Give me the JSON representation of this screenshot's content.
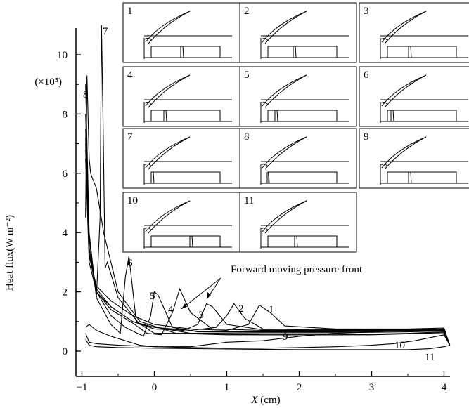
{
  "chart_data": {
    "type": "line",
    "ylabel": "Heat flux(W m⁻²)",
    "xlabel_italic": "X",
    "xlabel_rest": " (cm)",
    "y_multiplier": "(×10⁵)",
    "xlim": [
      -1.0,
      4.1
    ],
    "ylim": [
      -0.25,
      11.0
    ],
    "xticks": [
      {
        "v": -1,
        "label": "−1"
      },
      {
        "v": 0,
        "label": "0"
      },
      {
        "v": 1,
        "label": "1"
      },
      {
        "v": 2,
        "label": "2"
      },
      {
        "v": 3,
        "label": "3"
      },
      {
        "v": 4,
        "label": "4"
      }
    ],
    "yticks": [
      {
        "v": 0,
        "label": "0"
      },
      {
        "v": 2,
        "label": "2"
      },
      {
        "v": 4,
        "label": "4"
      },
      {
        "v": 6,
        "label": "6"
      },
      {
        "v": 8,
        "label": "8"
      },
      {
        "v": 10,
        "label": "10"
      }
    ],
    "annotation": "Forward moving pressure front",
    "series": [
      {
        "name": "1",
        "x": [
          -0.95,
          -0.9,
          -0.8,
          -0.6,
          -0.3,
          0,
          0.5,
          1.0,
          1.3,
          1.45,
          1.6,
          1.8,
          2.5,
          3.5,
          4.0,
          4.08
        ],
        "y": [
          6.8,
          3.2,
          2.2,
          1.7,
          1.2,
          0.9,
          0.75,
          0.7,
          0.9,
          1.55,
          1.3,
          0.85,
          0.75,
          0.75,
          0.78,
          0.2
        ]
      },
      {
        "name": "2",
        "x": [
          -0.95,
          -0.9,
          -0.8,
          -0.6,
          -0.3,
          0,
          0.5,
          0.85,
          1.0,
          1.1,
          1.25,
          1.5,
          2.5,
          3.5,
          4.0,
          4.08
        ],
        "y": [
          6.5,
          3.0,
          2.0,
          1.5,
          1.0,
          0.8,
          0.7,
          0.8,
          1.2,
          1.6,
          1.1,
          0.75,
          0.72,
          0.72,
          0.75,
          0.2
        ]
      },
      {
        "name": "3",
        "x": [
          -0.95,
          -0.9,
          -0.8,
          -0.6,
          -0.3,
          0,
          0.4,
          0.6,
          0.72,
          0.8,
          1.0,
          1.5,
          2.5,
          3.5,
          4.0,
          4.08
        ],
        "y": [
          7.0,
          3.3,
          2.1,
          1.5,
          1.0,
          0.75,
          0.7,
          0.9,
          1.6,
          1.5,
          0.9,
          0.72,
          0.7,
          0.7,
          0.72,
          0.2
        ]
      },
      {
        "name": "4",
        "x": [
          -0.95,
          -0.9,
          -0.8,
          -0.6,
          -0.3,
          -0.1,
          0.1,
          0.25,
          0.35,
          0.5,
          0.8,
          1.5,
          2.5,
          3.5,
          4.0,
          4.08
        ],
        "y": [
          7.2,
          3.3,
          2.0,
          1.4,
          0.95,
          0.6,
          0.55,
          1.3,
          2.1,
          1.3,
          0.75,
          0.7,
          0.68,
          0.7,
          0.72,
          0.2
        ]
      },
      {
        "name": "5",
        "x": [
          -0.95,
          -0.9,
          -0.8,
          -0.6,
          -0.4,
          -0.15,
          -0.05,
          0.0,
          0.05,
          0.25,
          0.6,
          1.5,
          2.5,
          3.5,
          4.0,
          4.08
        ],
        "y": [
          7.5,
          3.5,
          2.0,
          1.2,
          0.8,
          0.5,
          1.2,
          2.0,
          1.9,
          0.8,
          0.65,
          0.65,
          0.65,
          0.68,
          0.7,
          0.2
        ]
      },
      {
        "name": "6",
        "x": [
          -0.95,
          -0.9,
          -0.8,
          -0.6,
          -0.47,
          -0.4,
          -0.35,
          -0.25,
          0.0,
          0.5,
          1.5,
          2.5,
          3.5,
          4.0,
          4.08
        ],
        "y": [
          8.0,
          3.8,
          1.8,
          0.9,
          0.6,
          2.5,
          3.2,
          1.0,
          0.6,
          0.6,
          0.62,
          0.62,
          0.65,
          0.68,
          0.2
        ]
      },
      {
        "name": "7",
        "x": [
          -0.95,
          -0.9,
          -0.8,
          -0.75,
          -0.73,
          -0.71,
          -0.68,
          -0.65,
          -0.5,
          -0.2,
          0.5,
          1.5,
          2.5,
          3.5,
          4.0,
          4.08
        ],
        "y": [
          9.0,
          4.0,
          1.8,
          4.5,
          11.0,
          8.0,
          2.8,
          3.0,
          1.8,
          0.9,
          0.6,
          0.55,
          0.55,
          0.6,
          0.65,
          0.2
        ]
      },
      {
        "name": "8",
        "x": [
          -0.95,
          -0.93,
          -0.9,
          -0.88,
          -0.85,
          -0.8,
          -0.7,
          -0.5,
          -0.2,
          0.3,
          1.0,
          2.0,
          3.0,
          4.0,
          4.08
        ],
        "y": [
          4.5,
          9.3,
          6.5,
          6.0,
          5.8,
          5.5,
          4.0,
          2.0,
          1.0,
          0.6,
          0.55,
          0.55,
          0.55,
          0.62,
          0.2
        ]
      },
      {
        "name": "9",
        "x": [
          -0.95,
          -0.9,
          -0.8,
          -0.6,
          -0.4,
          -0.2,
          0.0,
          0.5,
          1.0,
          1.5,
          2.0,
          2.5,
          3.0,
          3.5,
          4.0,
          4.08
        ],
        "y": [
          0.8,
          0.9,
          0.7,
          0.5,
          0.35,
          0.2,
          0.15,
          0.15,
          0.3,
          0.35,
          0.5,
          0.6,
          0.65,
          0.72,
          0.75,
          0.2
        ]
      },
      {
        "name": "10",
        "x": [
          -0.95,
          -0.9,
          -0.8,
          -0.5,
          0.0,
          0.5,
          1.0,
          1.5,
          2.0,
          2.5,
          3.0,
          3.3,
          3.6,
          4.0,
          4.08
        ],
        "y": [
          0.6,
          0.3,
          0.25,
          0.2,
          0.15,
          0.12,
          0.1,
          0.1,
          0.12,
          0.15,
          0.2,
          0.25,
          0.35,
          0.55,
          0.2
        ]
      },
      {
        "name": "11",
        "x": [
          -0.95,
          -0.9,
          -0.8,
          -0.5,
          0.0,
          1.0,
          2.0,
          3.0,
          3.5,
          3.8,
          4.0,
          4.08
        ],
        "y": [
          0.4,
          0.2,
          0.15,
          0.12,
          0.1,
          0.07,
          0.05,
          0.05,
          0.05,
          0.08,
          0.15,
          0.2
        ]
      }
    ]
  },
  "insets": [
    {
      "label": "1"
    },
    {
      "label": "2"
    },
    {
      "label": "3"
    },
    {
      "label": "4"
    },
    {
      "label": "5"
    },
    {
      "label": "6"
    },
    {
      "label": "7"
    },
    {
      "label": "8"
    },
    {
      "label": "9"
    },
    {
      "label": "10"
    },
    {
      "label": "11"
    }
  ]
}
